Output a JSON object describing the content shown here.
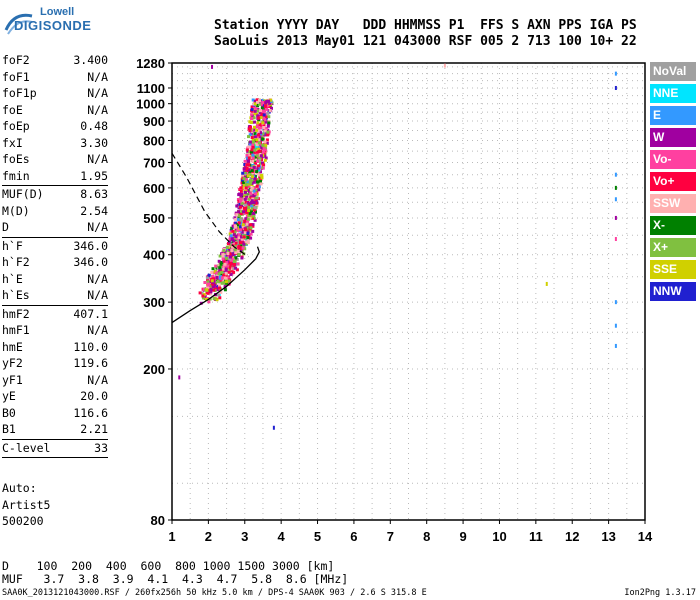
{
  "logo": {
    "line1": "Lowell",
    "line2": "DIGISONDE"
  },
  "header": {
    "row1": "Station YYYY DAY   DDD HHMMSS P1  FFS S AXN PPS IGA PS",
    "row2": "SaoLuis 2013 May01 121 043000 RSF 005 2 713 100 10+ 22"
  },
  "params": [
    [
      {
        "k": "foF2",
        "v": "3.400"
      },
      {
        "k": "foF1",
        "v": "N/A"
      },
      {
        "k": "foF1p",
        "v": "N/A"
      },
      {
        "k": "foE",
        "v": "N/A"
      },
      {
        "k": "foEp",
        "v": "0.48"
      },
      {
        "k": "fxI",
        "v": "3.30"
      },
      {
        "k": "foEs",
        "v": "N/A"
      },
      {
        "k": "fmin",
        "v": "1.95"
      }
    ],
    [
      {
        "k": "MUF(D)",
        "v": "8.63"
      },
      {
        "k": "M(D)",
        "v": "2.54"
      },
      {
        "k": "D",
        "v": "N/A"
      }
    ],
    [
      {
        "k": "h`F",
        "v": "346.0"
      },
      {
        "k": "h`F2",
        "v": "346.0"
      },
      {
        "k": "h`E",
        "v": "N/A"
      },
      {
        "k": "h`Es",
        "v": "N/A"
      }
    ],
    [
      {
        "k": "hmF2",
        "v": "407.1"
      },
      {
        "k": "hmF1",
        "v": "N/A"
      },
      {
        "k": "hmE",
        "v": "110.0"
      },
      {
        "k": "yF2",
        "v": "119.6"
      },
      {
        "k": "yF1",
        "v": "N/A"
      },
      {
        "k": "yE",
        "v": "20.0"
      },
      {
        "k": "B0",
        "v": "116.6"
      },
      {
        "k": "B1",
        "v": "2.21"
      }
    ],
    [
      {
        "k": "C-level",
        "v": "33"
      }
    ]
  ],
  "auto": {
    "l1": "Auto:",
    "l2": "Artist5",
    "l3": "500200"
  },
  "muf_table": {
    "row_d": "D    100  200  400  600  800 1000 1500 3000 [km]",
    "row_muf": "MUF   3.7  3.8  3.9  4.1  4.3  4.7  5.8  8.6 [MHz]"
  },
  "footer": {
    "left": "SAA0K_2013121043000.RSF / 260fx256h 50 kHz 5.0 km / DPS-4 SAA0K 903 / 2.6 S 315.8 E",
    "right": "Ion2Png 1.3.17"
  },
  "legend": [
    {
      "label": "NoVal",
      "color": "#a0a0a0"
    },
    {
      "label": "NNE",
      "color": "#00e5ff"
    },
    {
      "label": "E",
      "color": "#3399ff"
    },
    {
      "label": "W",
      "color": "#a000a0"
    },
    {
      "label": "Vo-",
      "color": "#ff40a0"
    },
    {
      "label": "Vo+",
      "color": "#ff0040"
    },
    {
      "label": "SSW",
      "color": "#ffb0b0"
    },
    {
      "label": "X-",
      "color": "#008000"
    },
    {
      "label": "X+",
      "color": "#80c040"
    },
    {
      "label": "SSE",
      "color": "#d0d000"
    },
    {
      "label": "NNW",
      "color": "#2020d0"
    }
  ],
  "chart_data": {
    "type": "scatter",
    "title": "",
    "xlabel": "",
    "ylabel": "",
    "xlim": [
      1,
      14
    ],
    "ylim": [
      80,
      1280
    ],
    "xticks": [
      "1",
      "2",
      "3",
      "4",
      "5",
      "6",
      "7",
      "8",
      "9",
      "10",
      "11",
      "12",
      "13",
      "14"
    ],
    "yticks": [
      "80",
      "200",
      "300",
      "400",
      "500",
      "600",
      "700",
      "800",
      "900",
      "1000",
      "1100",
      "1280"
    ],
    "y_scale": "log",
    "minor_grid": "dotted",
    "curves": {
      "profile_solid": [
        [
          1.0,
          265
        ],
        [
          1.5,
          285
        ],
        [
          2.0,
          305
        ],
        [
          2.5,
          330
        ],
        [
          3.0,
          365
        ],
        [
          3.3,
          390
        ],
        [
          3.4,
          407
        ],
        [
          3.35,
          420
        ]
      ],
      "profile_dashed": [
        [
          1.0,
          740
        ],
        [
          1.4,
          640
        ],
        [
          1.9,
          520
        ],
        [
          2.3,
          460
        ],
        [
          2.7,
          420
        ],
        [
          3.1,
          395
        ]
      ]
    },
    "trace_density": [
      {
        "f": 1.95,
        "h": 310,
        "n": 4
      },
      {
        "f": 2.1,
        "h": 330,
        "n": 6
      },
      {
        "f": 2.3,
        "h": 350,
        "n": 8
      },
      {
        "f": 2.5,
        "h": 380,
        "n": 9
      },
      {
        "f": 2.7,
        "h": 420,
        "n": 10
      },
      {
        "f": 2.9,
        "h": 470,
        "n": 10
      },
      {
        "f": 3.0,
        "h": 530,
        "n": 10
      },
      {
        "f": 3.1,
        "h": 600,
        "n": 9
      },
      {
        "f": 3.2,
        "h": 680,
        "n": 8
      },
      {
        "f": 3.3,
        "h": 760,
        "n": 7
      },
      {
        "f": 3.35,
        "h": 850,
        "n": 6
      },
      {
        "f": 3.4,
        "h": 950,
        "n": 4
      },
      {
        "f": 3.45,
        "h": 1020,
        "n": 3
      }
    ],
    "isolated_points": [
      {
        "f": 13.2,
        "h": 1200,
        "c": "#3399ff"
      },
      {
        "f": 13.2,
        "h": 1100,
        "c": "#2020d0"
      },
      {
        "f": 13.2,
        "h": 650,
        "c": "#3399ff"
      },
      {
        "f": 13.2,
        "h": 600,
        "c": "#008000"
      },
      {
        "f": 13.2,
        "h": 560,
        "c": "#3399ff"
      },
      {
        "f": 13.2,
        "h": 500,
        "c": "#a000a0"
      },
      {
        "f": 13.2,
        "h": 440,
        "c": "#ff40a0"
      },
      {
        "f": 13.2,
        "h": 300,
        "c": "#3399ff"
      },
      {
        "f": 13.2,
        "h": 260,
        "c": "#3399ff"
      },
      {
        "f": 13.2,
        "h": 230,
        "c": "#3399ff"
      },
      {
        "f": 11.3,
        "h": 335,
        "c": "#d0d000"
      },
      {
        "f": 8.5,
        "h": 1260,
        "c": "#ffb0b0"
      },
      {
        "f": 3.8,
        "h": 140,
        "c": "#2020d0"
      },
      {
        "f": 1.2,
        "h": 190,
        "c": "#a000a0"
      },
      {
        "f": 2.1,
        "h": 1250,
        "c": "#a000a0"
      }
    ]
  }
}
